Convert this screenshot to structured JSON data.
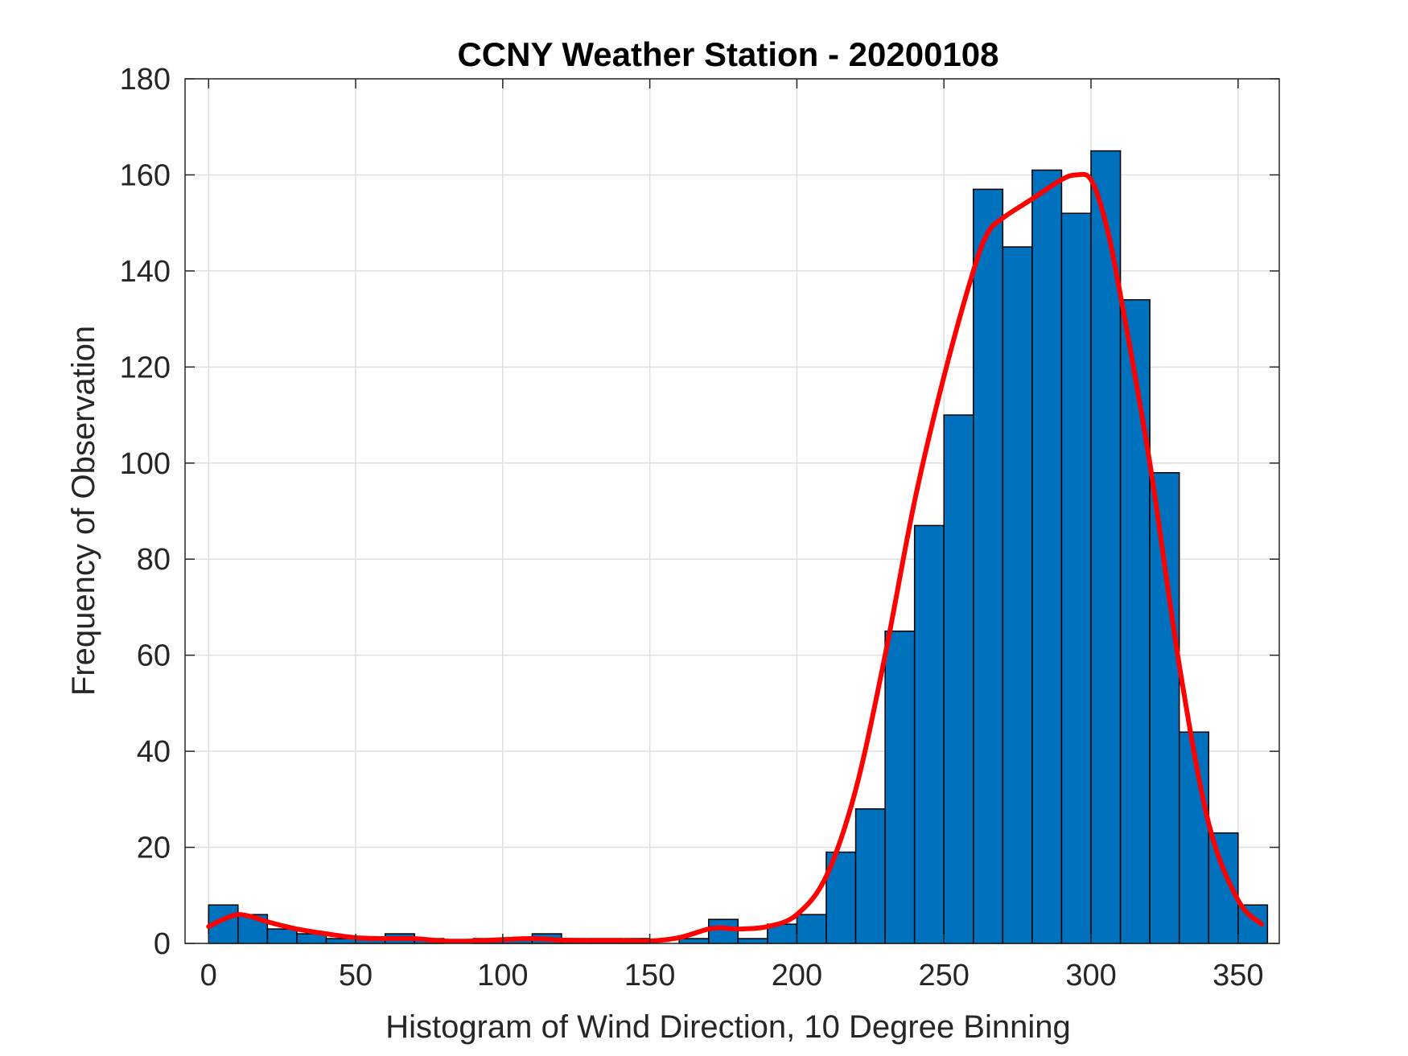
{
  "chart_data": {
    "type": "bar",
    "title": "CCNY Weather Station - 20200108",
    "xlabel": "Histogram of Wind Direction, 10 Degree Binning",
    "ylabel": "Frequency of Observation",
    "xlim": [
      -8,
      364
    ],
    "ylim": [
      0,
      180
    ],
    "xticks": [
      0,
      50,
      100,
      150,
      200,
      250,
      300,
      350
    ],
    "yticks": [
      0,
      20,
      40,
      60,
      80,
      100,
      120,
      140,
      160,
      180
    ],
    "grid": true,
    "bin_width": 10,
    "bin_edges": [
      0,
      10,
      20,
      30,
      40,
      50,
      60,
      70,
      80,
      90,
      100,
      110,
      120,
      130,
      140,
      150,
      160,
      170,
      180,
      190,
      200,
      210,
      220,
      230,
      240,
      250,
      260,
      270,
      280,
      290,
      300,
      310,
      320,
      330,
      340,
      350,
      360
    ],
    "counts": [
      8,
      6,
      3,
      2,
      1,
      1,
      2,
      1,
      0,
      1,
      1,
      2,
      1,
      1,
      1,
      0,
      1,
      5,
      1,
      4,
      6,
      19,
      28,
      65,
      87,
      110,
      157,
      145,
      161,
      152,
      165,
      134,
      98,
      44,
      23,
      8
    ],
    "bar_color": "#0072bd",
    "bar_edge_color": "#000000",
    "fit_curve": {
      "color": "#ff0000",
      "x": [
        0,
        5,
        10,
        15,
        20,
        30,
        40,
        50,
        60,
        70,
        80,
        90,
        100,
        110,
        120,
        130,
        140,
        150,
        160,
        170,
        175,
        180,
        190,
        200,
        210,
        220,
        230,
        240,
        250,
        260,
        265,
        270,
        280,
        290,
        295,
        300,
        305,
        310,
        320,
        330,
        340,
        350,
        358
      ],
      "y": [
        3.5,
        5,
        6,
        5.5,
        4.5,
        3,
        2,
        1.2,
        1,
        1,
        0.5,
        0.5,
        0.8,
        1,
        0.7,
        0.6,
        0.6,
        0.5,
        1.2,
        3,
        3.2,
        3,
        3.5,
        6,
        14,
        32,
        60,
        92,
        118,
        140,
        148,
        151,
        155,
        159,
        160,
        159,
        150,
        135,
        100,
        58,
        25,
        9,
        4
      ]
    }
  }
}
